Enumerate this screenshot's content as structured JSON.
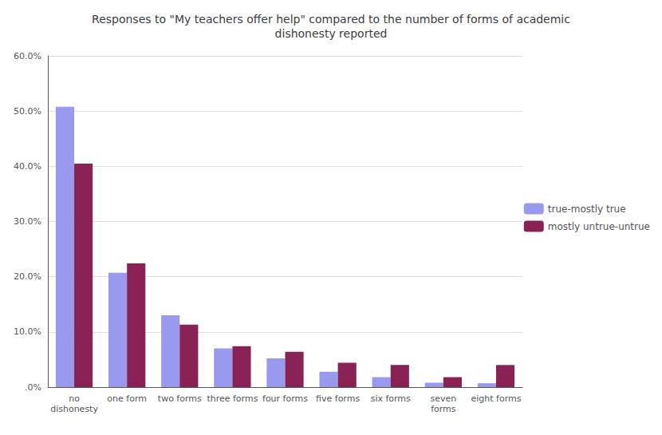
{
  "chart_data": {
    "type": "bar",
    "title": "Responses to \"My teachers offer help\" compared to the number of forms of academic\ndishonesty reported",
    "categories": [
      "no\ndishonesty",
      "one form",
      "two forms",
      "three forms",
      "four forms",
      "five forms",
      "six forms",
      "seven\nforms",
      "eight forms"
    ],
    "series": [
      {
        "name": "true-mostly true",
        "color": "#9999ee",
        "values": [
          0.508,
          0.207,
          0.13,
          0.07,
          0.052,
          0.028,
          0.018,
          0.008,
          0.007
        ]
      },
      {
        "name": "mostly untrue-untrue",
        "color": "#882255",
        "values": [
          0.405,
          0.224,
          0.113,
          0.074,
          0.064,
          0.044,
          0.04,
          0.018,
          0.04
        ]
      }
    ],
    "ylim": [
      0.0,
      0.6
    ],
    "yticks": [
      {
        "value": 0.0,
        "label": ".0%"
      },
      {
        "value": 0.1,
        "label": "10.0%"
      },
      {
        "value": 0.2,
        "label": "20.0%"
      },
      {
        "value": 0.3,
        "label": "30.0%"
      },
      {
        "value": 0.4,
        "label": "40.0%"
      },
      {
        "value": 0.5,
        "label": "50.0%"
      },
      {
        "value": 0.6,
        "label": "60.0%"
      }
    ],
    "grid": true,
    "legend": "right"
  }
}
